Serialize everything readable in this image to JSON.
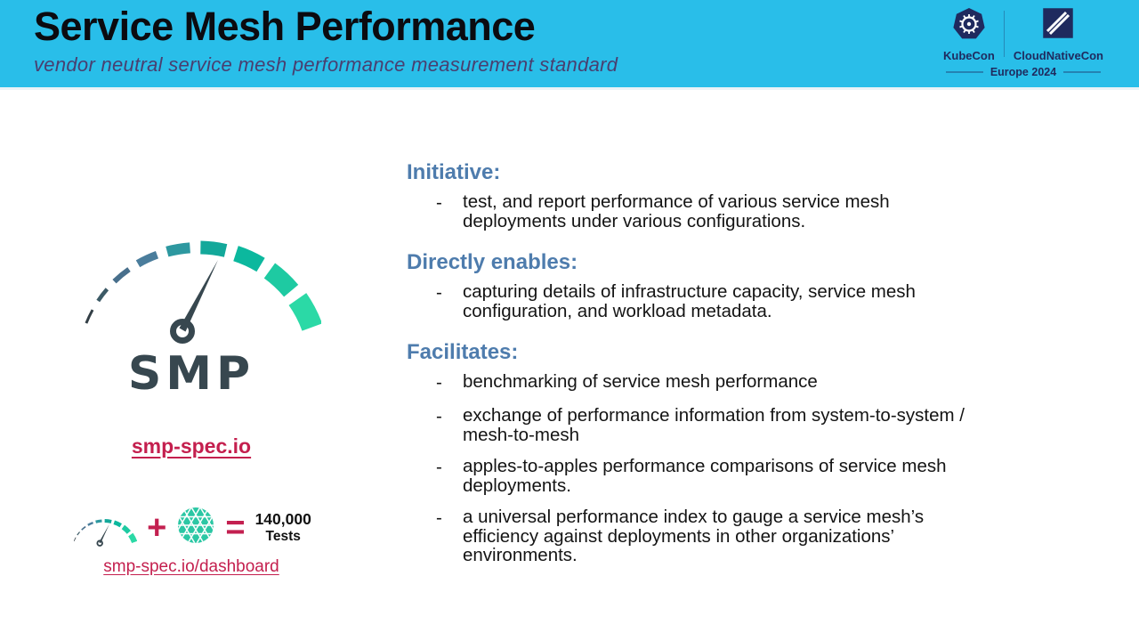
{
  "header": {
    "title": "Service Mesh Performance",
    "subtitle": "vendor neutral service mesh performance measurement standard",
    "event": {
      "kubecon_label": "KubeCon",
      "cloudnativecon_label": "CloudNativeCon",
      "edition": "Europe 2024"
    }
  },
  "left": {
    "logo_text": "SMP",
    "spec_link": "smp-spec.io",
    "dashboard_link": "smp-spec.io/dashboard",
    "equation": {
      "plus": "+",
      "equals": "=",
      "result_value": "140,000",
      "result_unit": "Tests"
    }
  },
  "bullet_dash": "-",
  "sections": [
    {
      "heading": "Initiative:",
      "bullets": [
        [
          "test, and report performance of various service mesh",
          "deployments under various configurations."
        ]
      ]
    },
    {
      "heading": "Directly enables:",
      "bullets": [
        [
          "capturing details of infrastructure capacity, service mesh",
          "configuration, and workload metadata."
        ]
      ]
    },
    {
      "heading": "Facilitates:",
      "bullets": [
        [
          "benchmarking of service mesh performance"
        ],
        [
          "exchange of performance information from system-to-system /",
          "mesh-to-mesh"
        ],
        [
          "apples-to-apples performance comparisons of service mesh",
          "deployments."
        ],
        [
          "a universal performance index to gauge a service mesh’s",
          "efficiency against deployments in other organizations’",
          "environments."
        ]
      ]
    }
  ],
  "icons": {
    "smp_logo": "speedometer-gauge",
    "mini_gauge": "speedometer-gauge",
    "meshery": "mesh-sphere",
    "kubecon": "kubernetes-wheel-heptagon",
    "cloudnativecon": "cncf-diagonal-square"
  },
  "colors": {
    "header_bg": "#29bee9",
    "subtitle": "#493f70",
    "heading_blue": "#4e7cad",
    "link_crimson": "#c41f4e",
    "navy": "#1f2a5e",
    "smp_dark": "#37474f",
    "gauge_teal": "#2bd9a6",
    "body_text": "#141414"
  }
}
